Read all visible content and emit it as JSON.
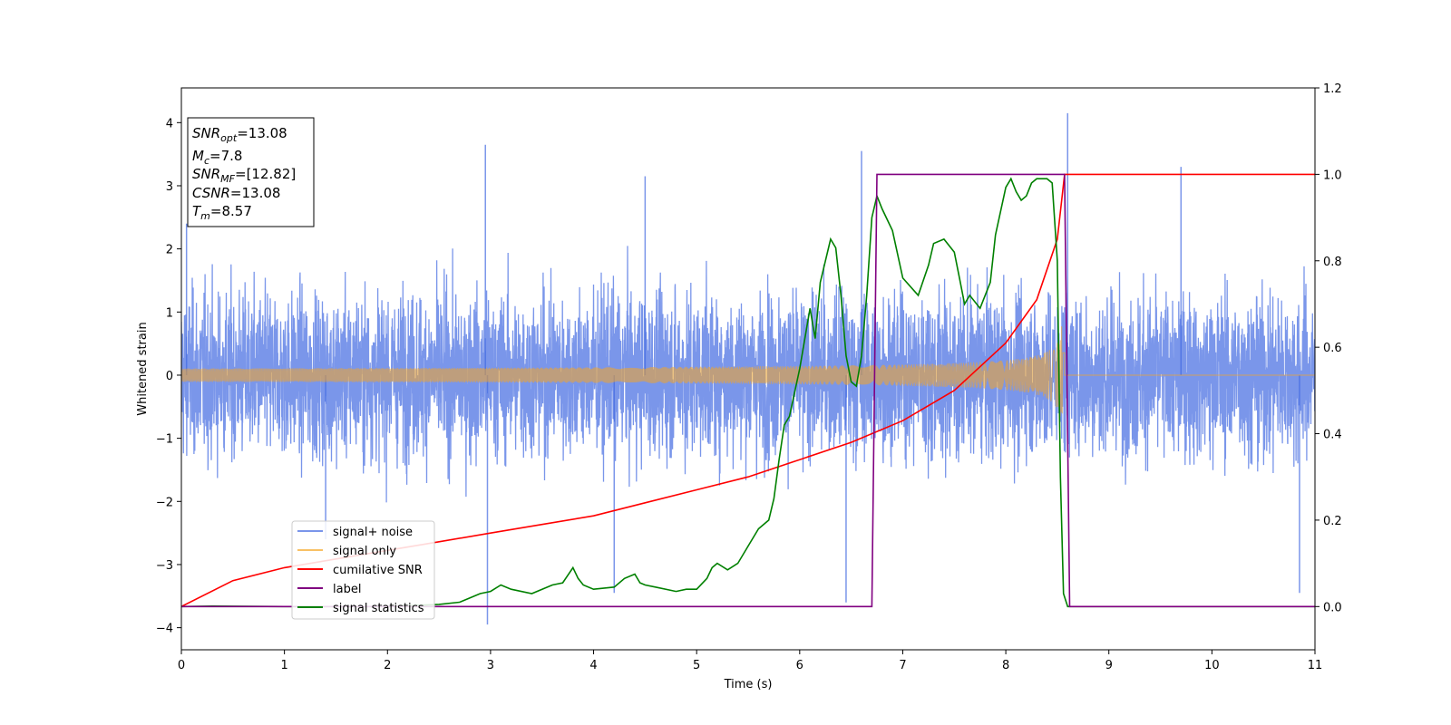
{
  "chart_data": {
    "type": "line",
    "xlabel": "Time (s)",
    "ylabel": "Whitened strain",
    "xlim": [
      0,
      11
    ],
    "ylim_left": [
      -4.35,
      4.55
    ],
    "ylim_right": [
      -0.1,
      1.2
    ],
    "x_ticks": [
      "0",
      "1",
      "2",
      "3",
      "4",
      "5",
      "6",
      "7",
      "8",
      "9",
      "10",
      "11"
    ],
    "y_ticks_left": [
      "−4",
      "−3",
      "−2",
      "−1",
      "0",
      "1",
      "2",
      "3",
      "4"
    ],
    "y_ticks_right": [
      "0.0",
      "0.2",
      "0.4",
      "0.6",
      "0.8",
      "1.0",
      "1.2"
    ],
    "info_box": [
      {
        "base": "SNR",
        "sub": "opt",
        "rest": "=13.08"
      },
      {
        "base": "M",
        "sub": "c",
        "rest": "=7.8"
      },
      {
        "base": "SNR",
        "sub": "MF",
        "rest": "=[12.82]"
      },
      {
        "base": "CSNR",
        "sub": "",
        "rest": "=13.08"
      },
      {
        "base": "T",
        "sub": "m",
        "rest": "=8.57"
      }
    ],
    "legend_position": "lower-left",
    "series": [
      {
        "name": "signal+ noise",
        "axis": "left",
        "color": "#4169e1",
        "description_kind": "noise",
        "baseline_std": 0.75,
        "spikes": [
          [
            0.05,
            2.4
          ],
          [
            1.4,
            -2.6
          ],
          [
            2.95,
            3.65
          ],
          [
            2.97,
            -3.95
          ],
          [
            4.2,
            -3.45
          ],
          [
            4.5,
            3.15
          ],
          [
            6.45,
            -3.6
          ],
          [
            6.6,
            3.55
          ],
          [
            8.6,
            4.15
          ],
          [
            9.7,
            3.3
          ],
          [
            10.85,
            -3.45
          ]
        ]
      },
      {
        "name": "signal only",
        "axis": "left",
        "color": "#f5a623",
        "chirp_start_amplitude": 0.05,
        "chirp_end_amplitude": 0.9,
        "merger_time": 8.57
      },
      {
        "name": "cumilative SNR",
        "axis": "right",
        "color": "#ff0000",
        "x": [
          0,
          0.5,
          1,
          1.5,
          2,
          2.5,
          3,
          3.5,
          4,
          4.5,
          5,
          5.5,
          6,
          6.5,
          7,
          7.5,
          8,
          8.3,
          8.5,
          8.57,
          11
        ],
        "y": [
          0.0,
          0.06,
          0.09,
          0.11,
          0.13,
          0.15,
          0.17,
          0.19,
          0.21,
          0.24,
          0.27,
          0.3,
          0.34,
          0.38,
          0.43,
          0.5,
          0.61,
          0.71,
          0.85,
          1.0,
          1.0
        ]
      },
      {
        "name": "label",
        "axis": "right",
        "color": "#800080",
        "x": [
          0,
          6.7,
          6.75,
          8.57,
          8.62,
          11
        ],
        "y": [
          0,
          0,
          1,
          1,
          0,
          0
        ]
      },
      {
        "name": "signal statistics",
        "axis": "right",
        "color": "#008000",
        "x": [
          0,
          0.3,
          1.0,
          2.0,
          2.5,
          2.7,
          2.8,
          2.9,
          3.0,
          3.1,
          3.2,
          3.4,
          3.6,
          3.7,
          3.8,
          3.85,
          3.9,
          4.0,
          4.2,
          4.3,
          4.4,
          4.45,
          4.5,
          4.6,
          4.8,
          4.9,
          5.0,
          5.1,
          5.15,
          5.2,
          5.3,
          5.4,
          5.5,
          5.6,
          5.7,
          5.75,
          5.8,
          5.85,
          5.9,
          6.0,
          6.1,
          6.15,
          6.2,
          6.3,
          6.35,
          6.4,
          6.45,
          6.5,
          6.55,
          6.6,
          6.65,
          6.7,
          6.75,
          6.8,
          6.9,
          7.0,
          7.15,
          7.25,
          7.3,
          7.4,
          7.5,
          7.55,
          7.6,
          7.65,
          7.75,
          7.85,
          7.9,
          8.0,
          8.05,
          8.1,
          8.15,
          8.2,
          8.25,
          8.3,
          8.4,
          8.45,
          8.5,
          8.53,
          8.56,
          8.6,
          11
        ],
        "y": [
          0.0,
          0.001,
          0.0,
          0.0,
          0.005,
          0.01,
          0.02,
          0.03,
          0.035,
          0.05,
          0.04,
          0.03,
          0.05,
          0.055,
          0.09,
          0.065,
          0.05,
          0.04,
          0.045,
          0.065,
          0.075,
          0.055,
          0.05,
          0.045,
          0.035,
          0.04,
          0.04,
          0.065,
          0.09,
          0.1,
          0.085,
          0.1,
          0.14,
          0.18,
          0.2,
          0.25,
          0.34,
          0.42,
          0.44,
          0.55,
          0.69,
          0.62,
          0.75,
          0.85,
          0.83,
          0.72,
          0.58,
          0.52,
          0.51,
          0.58,
          0.72,
          0.9,
          0.95,
          0.92,
          0.87,
          0.76,
          0.72,
          0.79,
          0.84,
          0.85,
          0.82,
          0.76,
          0.7,
          0.72,
          0.69,
          0.75,
          0.86,
          0.97,
          0.99,
          0.96,
          0.94,
          0.95,
          0.98,
          0.99,
          0.99,
          0.98,
          0.8,
          0.3,
          0.03,
          0.0,
          0.0
        ]
      }
    ]
  }
}
